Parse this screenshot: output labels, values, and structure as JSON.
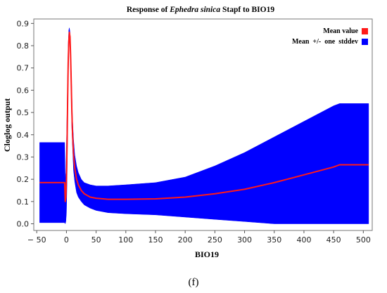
{
  "chart_data": {
    "type": "area",
    "title_prefix": "Response of ",
    "title_species": "Ephedra sinica",
    "title_suffix": " Stapf to BIO19",
    "xlabel": "BIO19",
    "ylabel": "Cloglog output",
    "xlim": [
      -55,
      515
    ],
    "ylim": [
      -0.03,
      0.92
    ],
    "xticks": [
      -50,
      0,
      50,
      100,
      150,
      200,
      250,
      300,
      350,
      400,
      450,
      500
    ],
    "yticks": [
      0.0,
      0.1,
      0.2,
      0.3,
      0.4,
      0.5,
      0.6,
      0.7,
      0.8,
      0.9
    ],
    "grid": false,
    "legend_position": "top-right",
    "series": [
      {
        "name": "Mean value",
        "color": "#ff1a1a",
        "x": [
          -45,
          -3,
          -2,
          -1,
          0,
          1,
          2,
          3,
          4,
          5,
          6,
          7,
          8,
          9,
          10,
          12,
          14,
          17,
          20,
          25,
          30,
          40,
          50,
          70,
          100,
          150,
          200,
          250,
          300,
          350,
          400,
          450,
          460,
          509
        ],
        "values": [
          0.185,
          0.185,
          0.1,
          0.12,
          0.2,
          0.35,
          0.55,
          0.72,
          0.82,
          0.86,
          0.84,
          0.76,
          0.64,
          0.52,
          0.42,
          0.31,
          0.25,
          0.2,
          0.175,
          0.15,
          0.135,
          0.12,
          0.115,
          0.11,
          0.11,
          0.112,
          0.12,
          0.135,
          0.155,
          0.185,
          0.22,
          0.255,
          0.265,
          0.265
        ]
      },
      {
        "name": "Mean +/- one stddev",
        "color": "#0000ff",
        "x": [
          -45,
          -3,
          -2,
          -1,
          0,
          1,
          2,
          3,
          4,
          5,
          6,
          7,
          8,
          9,
          10,
          12,
          14,
          17,
          20,
          25,
          30,
          40,
          50,
          70,
          100,
          150,
          200,
          250,
          300,
          350,
          400,
          450,
          460,
          509
        ],
        "upper": [
          0.365,
          0.365,
          0.2,
          0.23,
          0.35,
          0.5,
          0.65,
          0.8,
          0.87,
          0.88,
          0.86,
          0.8,
          0.7,
          0.6,
          0.48,
          0.38,
          0.31,
          0.26,
          0.23,
          0.2,
          0.185,
          0.175,
          0.17,
          0.17,
          0.175,
          0.185,
          0.21,
          0.26,
          0.32,
          0.39,
          0.46,
          0.53,
          0.54,
          0.54
        ],
        "lower": [
          0.005,
          0.005,
          0.0,
          0.01,
          0.05,
          0.2,
          0.45,
          0.64,
          0.77,
          0.84,
          0.82,
          0.72,
          0.58,
          0.44,
          0.36,
          0.24,
          0.19,
          0.14,
          0.12,
          0.1,
          0.085,
          0.07,
          0.06,
          0.05,
          0.045,
          0.04,
          0.03,
          0.02,
          0.01,
          0.0,
          0.0,
          0.0,
          0.0,
          0.0
        ]
      }
    ]
  },
  "legend": {
    "mean_label": "Mean value",
    "stddev_label": "Mean  +/-  one  stddev"
  },
  "caption": "(f)"
}
